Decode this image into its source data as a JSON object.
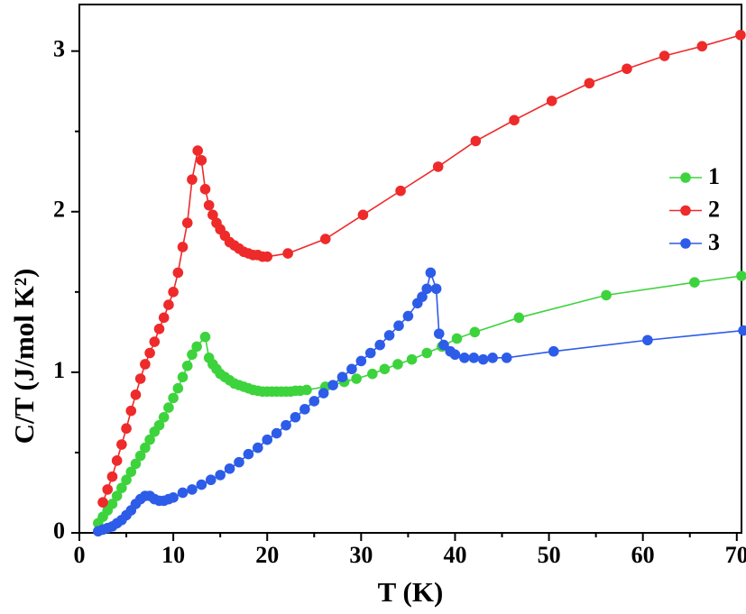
{
  "chart_data": {
    "type": "scatter-line",
    "x_label": "T (K)",
    "y_label": "C/T (J/mol K²)",
    "xlim": [
      0,
      70.5
    ],
    "ylim": [
      0,
      3.29
    ],
    "xticks": [
      0,
      10,
      20,
      30,
      40,
      50,
      60,
      70
    ],
    "yticks": [
      0,
      1,
      2,
      3
    ],
    "legend": "center right",
    "series": [
      {
        "name": "1",
        "color": "#3dd33d",
        "x": [
          2.0,
          2.5,
          3.0,
          3.5,
          4.0,
          4.5,
          5.0,
          5.5,
          6.0,
          6.5,
          7.0,
          7.5,
          8.0,
          8.5,
          9.0,
          9.5,
          10.0,
          10.5,
          11.0,
          11.5,
          12.0,
          12.5,
          13.4,
          13.8,
          14.2,
          14.6,
          15.0,
          15.5,
          16.0,
          16.5,
          17.0,
          17.5,
          18.0,
          18.5,
          19.0,
          19.5,
          20.0,
          20.5,
          21.0,
          21.5,
          22.0,
          22.5,
          23.0,
          23.5,
          24.2,
          26.2,
          28.2,
          29.5,
          31.2,
          32.5,
          33.9,
          35.4,
          37.0,
          38.6,
          40.2,
          42.1,
          46.8,
          56.1,
          65.5,
          70.5
        ],
        "values": [
          0.06,
          0.1,
          0.14,
          0.18,
          0.23,
          0.28,
          0.33,
          0.38,
          0.43,
          0.48,
          0.53,
          0.58,
          0.63,
          0.67,
          0.72,
          0.78,
          0.84,
          0.9,
          0.97,
          1.04,
          1.11,
          1.16,
          1.22,
          1.09,
          1.05,
          1.02,
          0.99,
          0.97,
          0.95,
          0.93,
          0.92,
          0.91,
          0.9,
          0.89,
          0.885,
          0.88,
          0.88,
          0.88,
          0.88,
          0.88,
          0.88,
          0.88,
          0.885,
          0.885,
          0.89,
          0.91,
          0.94,
          0.96,
          0.99,
          1.02,
          1.05,
          1.08,
          1.12,
          1.16,
          1.21,
          1.25,
          1.34,
          1.48,
          1.56,
          1.6
        ]
      },
      {
        "name": "2",
        "color": "#ee2a2a",
        "x": [
          2.5,
          3.0,
          3.5,
          4.0,
          4.5,
          5.0,
          5.5,
          6.0,
          6.5,
          7.0,
          7.5,
          8.0,
          8.5,
          9.0,
          9.5,
          10.0,
          10.5,
          11.0,
          11.5,
          12.0,
          12.6,
          13.0,
          13.4,
          13.8,
          14.2,
          14.6,
          15.0,
          15.5,
          16.0,
          16.5,
          17.0,
          17.5,
          18.0,
          18.5,
          19.0,
          19.5,
          20.0,
          22.2,
          26.2,
          30.2,
          34.2,
          38.2,
          42.2,
          46.3,
          50.3,
          54.3,
          58.3,
          62.3,
          66.3,
          70.4
        ],
        "values": [
          0.19,
          0.27,
          0.35,
          0.45,
          0.55,
          0.65,
          0.76,
          0.86,
          0.96,
          1.05,
          1.12,
          1.19,
          1.27,
          1.34,
          1.42,
          1.5,
          1.62,
          1.78,
          1.93,
          2.2,
          2.38,
          2.32,
          2.14,
          2.04,
          1.98,
          1.93,
          1.89,
          1.85,
          1.81,
          1.79,
          1.77,
          1.75,
          1.74,
          1.73,
          1.73,
          1.72,
          1.72,
          1.74,
          1.83,
          1.98,
          2.13,
          2.28,
          2.44,
          2.57,
          2.69,
          2.8,
          2.89,
          2.97,
          3.03,
          3.1
        ]
      },
      {
        "name": "3",
        "color": "#2d5ce8",
        "x": [
          2.0,
          2.5,
          3.0,
          3.5,
          4.0,
          4.5,
          5.0,
          5.5,
          6.0,
          6.5,
          7.0,
          7.5,
          8.0,
          8.5,
          9.0,
          9.5,
          10.0,
          11.0,
          12.0,
          13.0,
          14.0,
          15.0,
          16.0,
          17.0,
          18.0,
          19.0,
          20.0,
          21.0,
          22.0,
          23.0,
          24.0,
          25.0,
          26.0,
          27.0,
          28.0,
          29.0,
          30.0,
          31.0,
          32.0,
          33.0,
          34.0,
          35.0,
          36.0,
          36.5,
          37.0,
          37.4,
          38.0,
          38.3,
          38.8,
          39.5,
          40.0,
          41.0,
          42.0,
          43.0,
          44.0,
          45.5,
          50.5,
          60.5,
          70.7
        ],
        "values": [
          0.01,
          0.02,
          0.03,
          0.04,
          0.06,
          0.08,
          0.11,
          0.14,
          0.18,
          0.21,
          0.23,
          0.23,
          0.21,
          0.2,
          0.2,
          0.21,
          0.22,
          0.25,
          0.27,
          0.3,
          0.33,
          0.36,
          0.4,
          0.44,
          0.49,
          0.53,
          0.58,
          0.62,
          0.67,
          0.72,
          0.77,
          0.82,
          0.87,
          0.92,
          0.97,
          1.02,
          1.07,
          1.12,
          1.17,
          1.23,
          1.29,
          1.35,
          1.43,
          1.47,
          1.52,
          1.62,
          1.52,
          1.24,
          1.17,
          1.13,
          1.11,
          1.09,
          1.09,
          1.08,
          1.09,
          1.09,
          1.13,
          1.2,
          1.26
        ]
      }
    ]
  }
}
